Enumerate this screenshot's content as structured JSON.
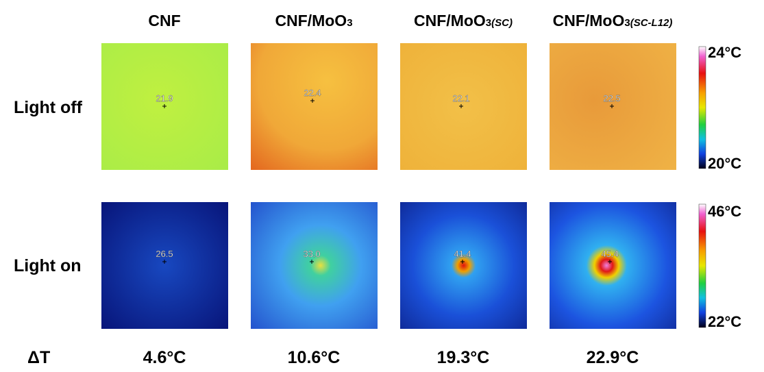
{
  "headers": [
    {
      "text": "CNF"
    },
    {
      "text": "CNF/MoO",
      "sub": "3"
    },
    {
      "text": "CNF/MoO",
      "sub": "3",
      "sub_italic": "(SC)"
    },
    {
      "text": "CNF/MoO",
      "sub": "3",
      "sub_italic": "(SC-L12)"
    }
  ],
  "rows": [
    {
      "label": "Light off",
      "readings": [
        "21.9",
        "22.4",
        "22.1",
        "22.5"
      ],
      "scale_max": "24°C",
      "scale_min": "20°C"
    },
    {
      "label": "Light on",
      "readings": [
        "26.5",
        "33.0",
        "41.4",
        "45.4"
      ],
      "scale_max": "46°C",
      "scale_min": "22°C"
    }
  ],
  "delta": {
    "label": "ΔT",
    "values": [
      "4.6°C",
      "10.6°C",
      "19.3°C",
      "22.9°C"
    ]
  }
}
